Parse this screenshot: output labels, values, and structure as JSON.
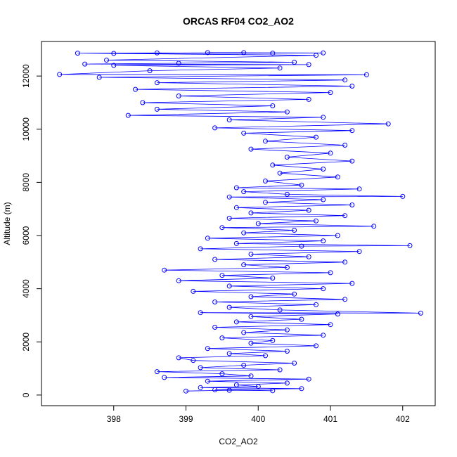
{
  "chart_data": {
    "type": "scatter",
    "title": "ORCAS RF04 CO2_AO2",
    "xlabel": "CO2_AO2",
    "ylabel": "Altitude (m)",
    "xlim": [
      397.0,
      402.45
    ],
    "ylim": [
      -400,
      13300
    ],
    "x_ticks": [
      398,
      399,
      400,
      401,
      402
    ],
    "x_tick_labels": [
      "398",
      "399",
      "400",
      "401",
      "402"
    ],
    "y_ticks": [
      0,
      2000,
      4000,
      6000,
      8000,
      10000,
      12000
    ],
    "y_tick_labels": [
      "0",
      "2000",
      "4000",
      "6000",
      "8000",
      "10000",
      "12000"
    ],
    "grid": false,
    "marker": "open-circle",
    "connected": true,
    "series": [
      {
        "color": "#0000ff",
        "points": [
          [
            399.0,
            150
          ],
          [
            399.6,
            180
          ],
          [
            400.2,
            160
          ],
          [
            399.4,
            200
          ],
          [
            400.6,
            240
          ],
          [
            399.2,
            280
          ],
          [
            400.0,
            320
          ],
          [
            399.7,
            380
          ],
          [
            400.4,
            450
          ],
          [
            399.3,
            520
          ],
          [
            400.7,
            600
          ],
          [
            398.7,
            660
          ],
          [
            399.9,
            720
          ],
          [
            399.5,
            800
          ],
          [
            398.6,
            880
          ],
          [
            400.3,
            950
          ],
          [
            399.2,
            1030
          ],
          [
            399.8,
            1120
          ],
          [
            400.5,
            1200
          ],
          [
            399.1,
            1300
          ],
          [
            398.9,
            1400
          ],
          [
            400.1,
            1480
          ],
          [
            399.6,
            1560
          ],
          [
            400.4,
            1650
          ],
          [
            399.3,
            1750
          ],
          [
            400.8,
            1850
          ],
          [
            399.9,
            1950
          ],
          [
            400.2,
            2050
          ],
          [
            399.5,
            2150
          ],
          [
            400.9,
            2250
          ],
          [
            399.8,
            2350
          ],
          [
            400.4,
            2450
          ],
          [
            399.4,
            2550
          ],
          [
            401.0,
            2650
          ],
          [
            399.7,
            2750
          ],
          [
            400.6,
            2850
          ],
          [
            399.9,
            2950
          ],
          [
            401.1,
            3050
          ],
          [
            399.2,
            3100
          ],
          [
            402.25,
            3080
          ],
          [
            400.3,
            3200
          ],
          [
            399.6,
            3300
          ],
          [
            400.8,
            3400
          ],
          [
            399.4,
            3500
          ],
          [
            401.2,
            3600
          ],
          [
            399.9,
            3700
          ],
          [
            400.5,
            3800
          ],
          [
            399.1,
            3900
          ],
          [
            400.9,
            4000
          ],
          [
            399.6,
            4100
          ],
          [
            401.3,
            4200
          ],
          [
            398.9,
            4300
          ],
          [
            400.2,
            4400
          ],
          [
            399.5,
            4500
          ],
          [
            401.0,
            4600
          ],
          [
            398.7,
            4700
          ],
          [
            400.4,
            4800
          ],
          [
            399.8,
            4900
          ],
          [
            401.2,
            5000
          ],
          [
            399.4,
            5100
          ],
          [
            400.7,
            5200
          ],
          [
            399.9,
            5300
          ],
          [
            401.4,
            5400
          ],
          [
            399.2,
            5500
          ],
          [
            400.6,
            5600
          ],
          [
            402.1,
            5620
          ],
          [
            399.7,
            5700
          ],
          [
            400.9,
            5800
          ],
          [
            399.3,
            5900
          ],
          [
            401.1,
            6000
          ],
          [
            399.8,
            6100
          ],
          [
            400.5,
            6200
          ],
          [
            399.5,
            6300
          ],
          [
            401.6,
            6350
          ],
          [
            400.0,
            6450
          ],
          [
            400.8,
            6550
          ],
          [
            399.6,
            6650
          ],
          [
            401.2,
            6750
          ],
          [
            399.9,
            6850
          ],
          [
            400.7,
            6950
          ],
          [
            399.7,
            7050
          ],
          [
            401.3,
            7150
          ],
          [
            400.1,
            7250
          ],
          [
            400.9,
            7350
          ],
          [
            399.6,
            7450
          ],
          [
            402.0,
            7470
          ],
          [
            400.4,
            7550
          ],
          [
            399.8,
            7650
          ],
          [
            401.4,
            7750
          ],
          [
            399.7,
            7800
          ],
          [
            400.6,
            7900
          ],
          [
            400.1,
            8050
          ],
          [
            401.1,
            8200
          ],
          [
            400.3,
            8350
          ],
          [
            400.9,
            8500
          ],
          [
            400.2,
            8650
          ],
          [
            401.3,
            8800
          ],
          [
            400.4,
            8950
          ],
          [
            401.0,
            9100
          ],
          [
            399.9,
            9250
          ],
          [
            401.2,
            9400
          ],
          [
            400.1,
            9550
          ],
          [
            400.8,
            9700
          ],
          [
            399.8,
            9850
          ],
          [
            401.3,
            9950
          ],
          [
            399.4,
            10050
          ],
          [
            401.8,
            10200
          ],
          [
            399.6,
            10350
          ],
          [
            400.9,
            10450
          ],
          [
            398.2,
            10520
          ],
          [
            400.4,
            10650
          ],
          [
            398.6,
            10750
          ],
          [
            400.2,
            10880
          ],
          [
            398.4,
            11000
          ],
          [
            400.7,
            11120
          ],
          [
            398.9,
            11250
          ],
          [
            401.0,
            11380
          ],
          [
            398.3,
            11500
          ],
          [
            401.3,
            11620
          ],
          [
            398.6,
            11750
          ],
          [
            401.2,
            11850
          ],
          [
            397.8,
            11950
          ],
          [
            401.5,
            12050
          ],
          [
            397.25,
            12060
          ],
          [
            398.5,
            12200
          ],
          [
            400.3,
            12300
          ],
          [
            398.0,
            12400
          ],
          [
            400.7,
            12430
          ],
          [
            397.6,
            12450
          ],
          [
            398.9,
            12480
          ],
          [
            400.5,
            12520
          ],
          [
            397.9,
            12600
          ],
          [
            400.8,
            12780
          ],
          [
            397.5,
            12860
          ],
          [
            398.6,
            12870
          ],
          [
            400.2,
            12860
          ],
          [
            399.3,
            12880
          ],
          [
            400.9,
            12870
          ],
          [
            398.0,
            12850
          ],
          [
            399.8,
            12880
          ]
        ]
      }
    ]
  }
}
